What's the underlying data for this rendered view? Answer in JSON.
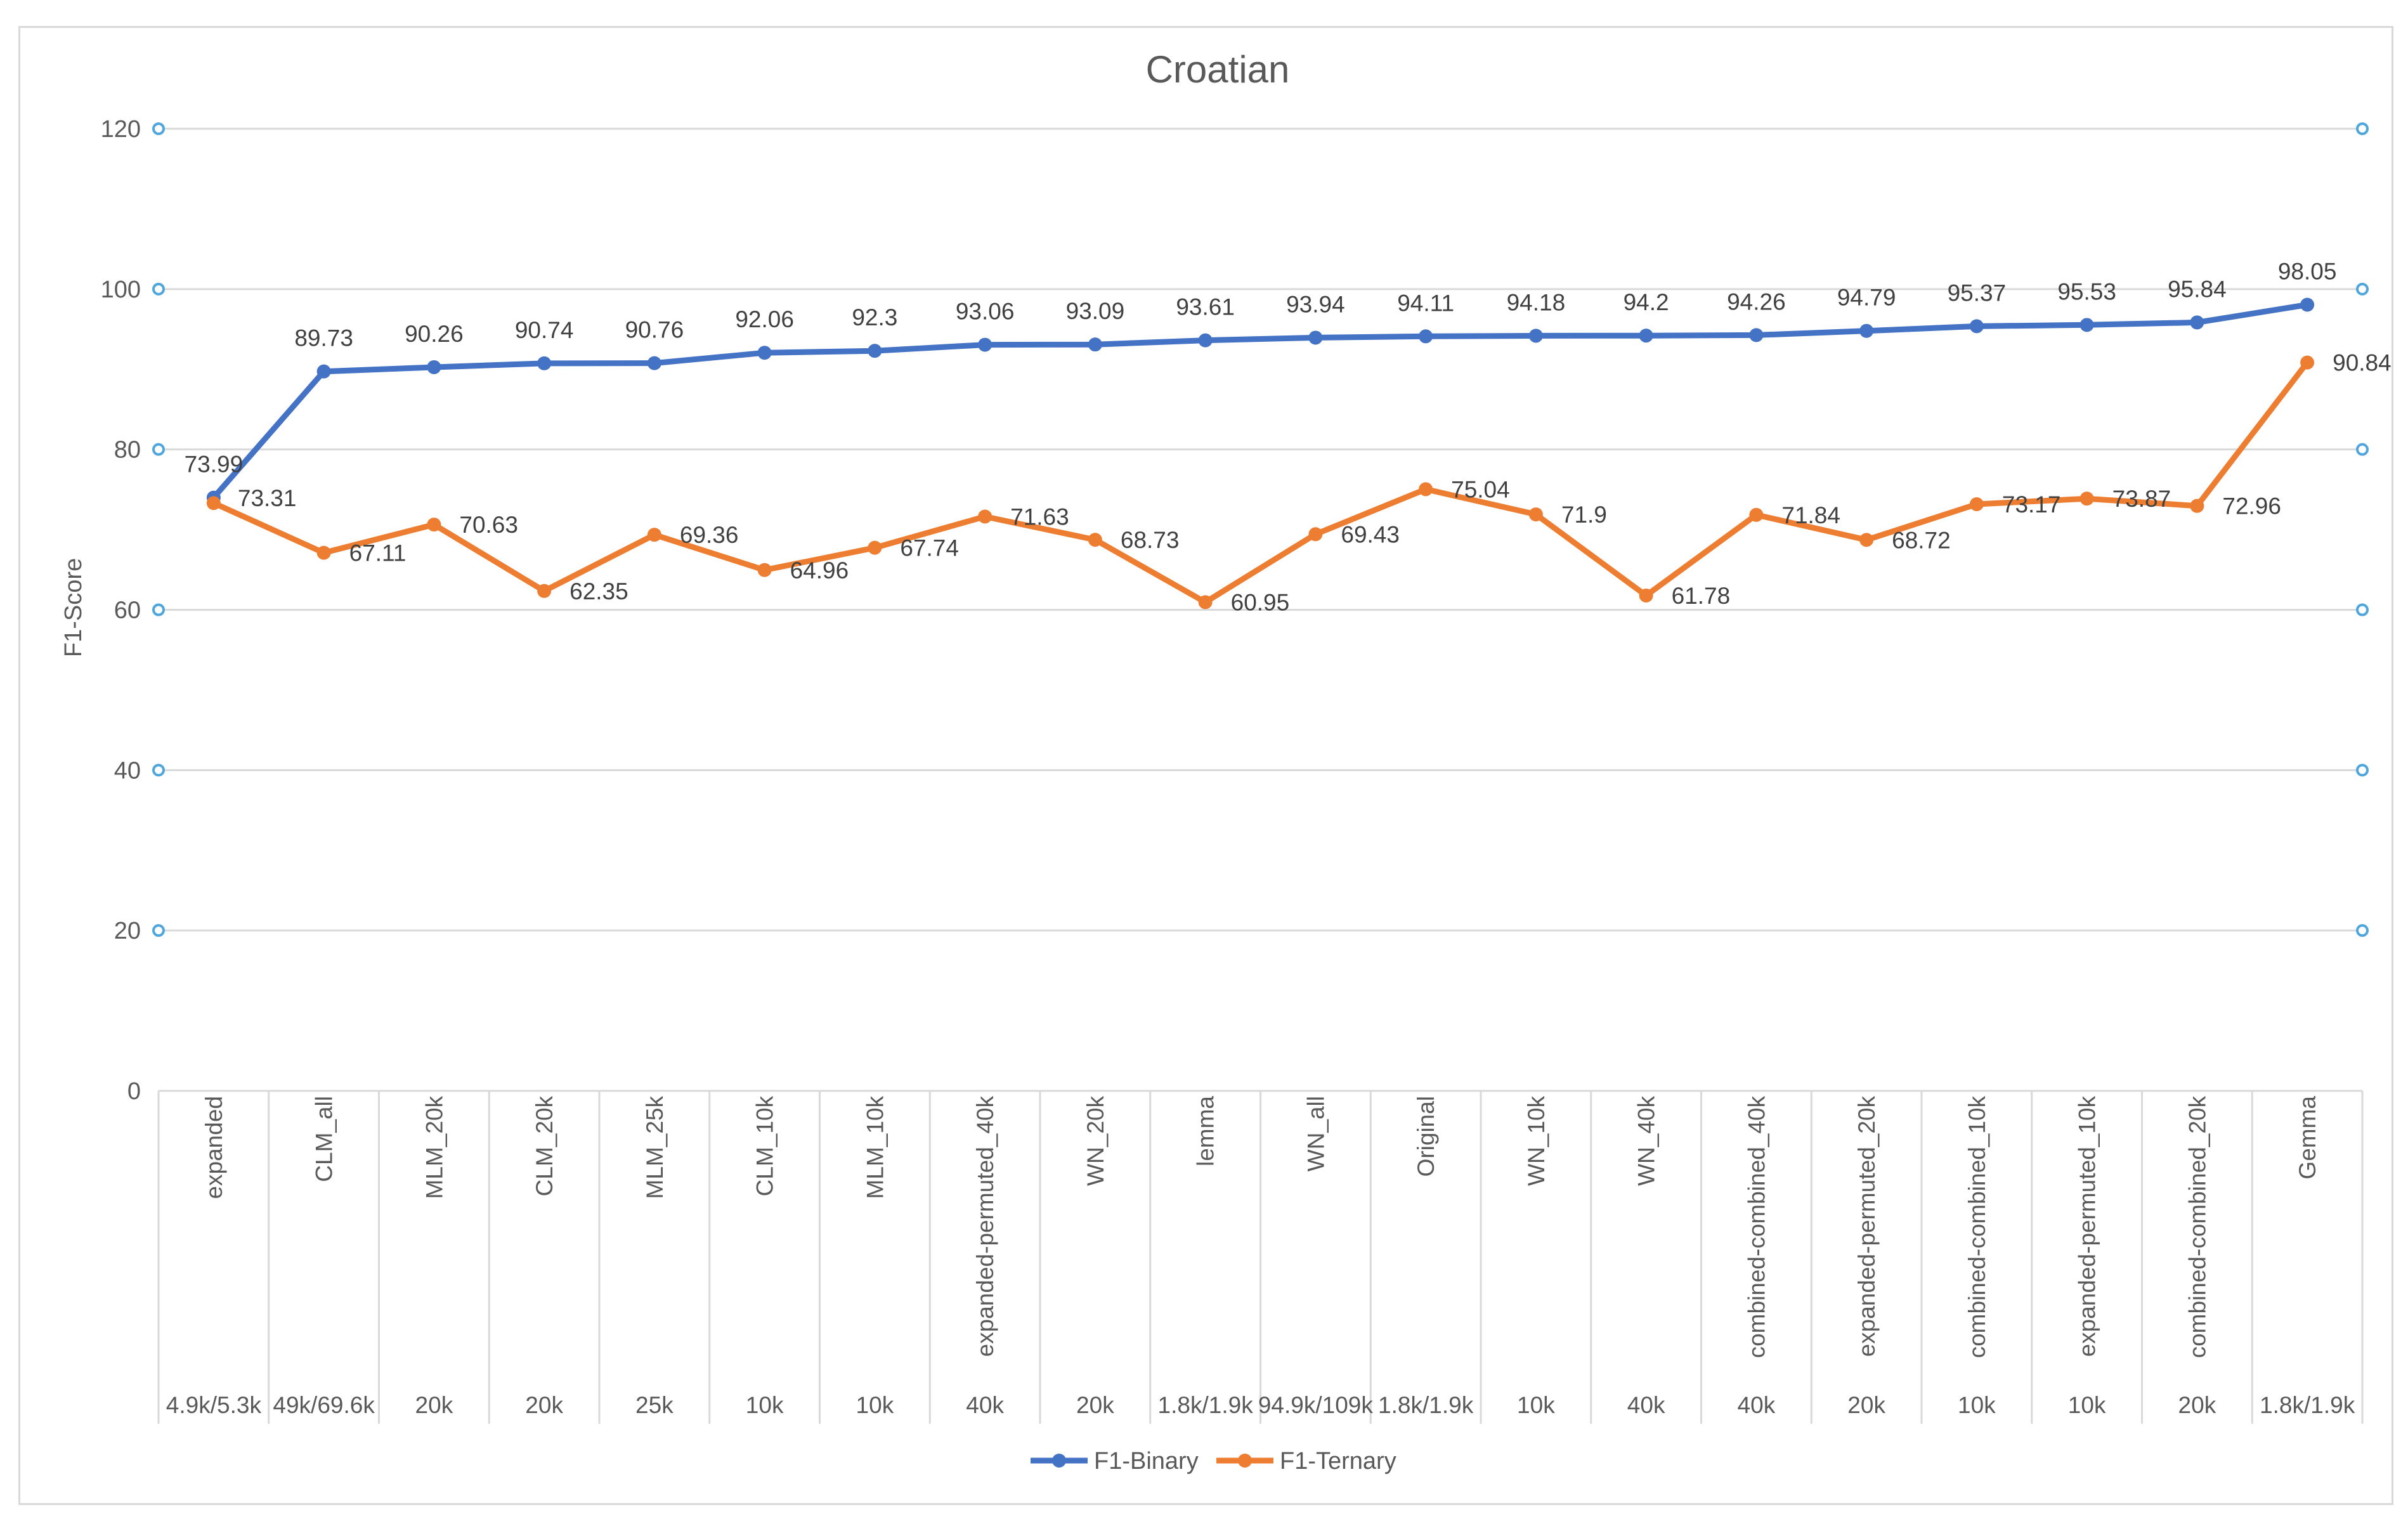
{
  "chart_data": {
    "type": "line",
    "title": "Croatian",
    "ylabel": "F1-Score",
    "xlabel": "",
    "ylim": [
      0,
      120
    ],
    "yticks": [
      0,
      20,
      40,
      60,
      80,
      100,
      120
    ],
    "grid": true,
    "legend_position": "bottom",
    "categories": [
      {
        "name": "expanded",
        "size": "4.9k/5.3k"
      },
      {
        "name": "CLM_all",
        "size": "49k/69.6k"
      },
      {
        "name": "MLM_20k",
        "size": "20k"
      },
      {
        "name": "CLM_20k",
        "size": "20k"
      },
      {
        "name": "MLM_25k",
        "size": "25k"
      },
      {
        "name": "CLM_10k",
        "size": "10k"
      },
      {
        "name": "MLM_10k",
        "size": "10k"
      },
      {
        "name": "expanded-permuted_40k",
        "size": "40k"
      },
      {
        "name": "WN_20k",
        "size": "20k"
      },
      {
        "name": "lemma",
        "size": "1.8k/1.9k"
      },
      {
        "name": "WN_all",
        "size": "94.9k/109k"
      },
      {
        "name": "Original",
        "size": "1.8k/1.9k"
      },
      {
        "name": "WN_10k",
        "size": "10k"
      },
      {
        "name": "WN_40k",
        "size": "40k"
      },
      {
        "name": "combined-combined_40k",
        "size": "40k"
      },
      {
        "name": "expanded-permuted_20k",
        "size": "20k"
      },
      {
        "name": "combined-combined_10k",
        "size": "10k"
      },
      {
        "name": "expanded-permuted_10k",
        "size": "10k"
      },
      {
        "name": "combined-combined_20k",
        "size": "20k"
      },
      {
        "name": "Gemma",
        "size": "1.8k/1.9k"
      }
    ],
    "series": [
      {
        "name": "F1-Binary",
        "color": "#4472C4",
        "values": [
          73.99,
          89.73,
          90.26,
          90.74,
          90.76,
          92.06,
          92.3,
          93.06,
          93.09,
          93.61,
          93.94,
          94.11,
          94.18,
          94.2,
          94.26,
          94.79,
          95.37,
          95.53,
          95.84,
          98.05
        ]
      },
      {
        "name": "F1-Ternary",
        "color": "#ED7D31",
        "values": [
          73.31,
          67.11,
          70.63,
          62.35,
          69.36,
          64.96,
          67.74,
          71.63,
          68.73,
          60.95,
          69.43,
          75.04,
          71.9,
          61.78,
          71.84,
          68.72,
          73.17,
          73.87,
          72.96,
          90.84
        ]
      }
    ]
  }
}
